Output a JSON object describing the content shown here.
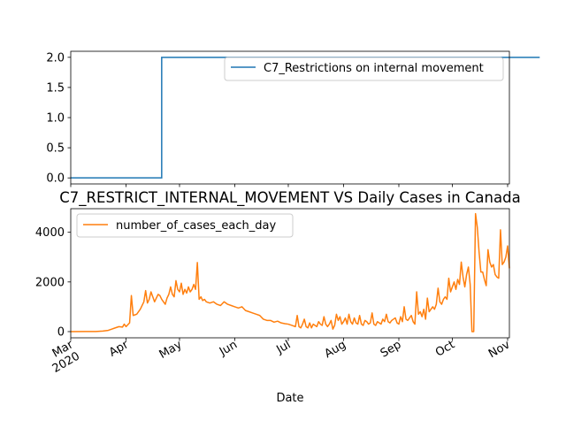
{
  "chart_data": [
    {
      "type": "line",
      "title": "",
      "xlabel": "",
      "ylabel": "",
      "ylim": [
        -0.1,
        2.1
      ],
      "yticks": [
        0.0,
        0.5,
        1.0,
        1.5,
        2.0
      ],
      "ytick_labels": [
        "0.0",
        "0.5",
        "1.0",
        "1.5",
        "2.0"
      ],
      "legend_position": "upper-right",
      "series": [
        {
          "name": "C7_Restrictions on internal movement",
          "color": "#1f77b4",
          "x": [
            0,
            51,
            51,
            263
          ],
          "values": [
            0,
            0,
            2,
            2
          ]
        }
      ]
    },
    {
      "type": "line",
      "title": "C7_RESTRICT_INTERNAL_MOVEMENT VS Daily Cases in Canada",
      "xlabel": "Date",
      "ylabel": "",
      "ylim": [
        -250,
        4950
      ],
      "yticks": [
        0,
        2000,
        4000
      ],
      "ytick_labels": [
        "0",
        "2000",
        "4000"
      ],
      "legend_position": "upper-left",
      "x_ticks": [
        {
          "day": 0,
          "label": "Mar",
          "sublabel": "2020"
        },
        {
          "day": 31,
          "label": "Apr",
          "sublabel": ""
        },
        {
          "day": 61,
          "label": "May",
          "sublabel": ""
        },
        {
          "day": 92,
          "label": "Jun",
          "sublabel": ""
        },
        {
          "day": 122,
          "label": "Jul",
          "sublabel": ""
        },
        {
          "day": 153,
          "label": "Aug",
          "sublabel": ""
        },
        {
          "day": 184,
          "label": "Sep",
          "sublabel": ""
        },
        {
          "day": 214,
          "label": "Oct",
          "sublabel": ""
        },
        {
          "day": 245,
          "label": "Nov",
          "sublabel": ""
        }
      ],
      "series": [
        {
          "name": "number_of_cases_each_day",
          "color": "#ff7f0e",
          "points": [
            [
              0,
              0
            ],
            [
              8,
              2
            ],
            [
              14,
              5
            ],
            [
              18,
              20
            ],
            [
              21,
              50
            ],
            [
              23,
              100
            ],
            [
              25,
              150
            ],
            [
              27,
              200
            ],
            [
              29,
              180
            ],
            [
              30,
              300
            ],
            [
              31,
              200
            ],
            [
              33,
              350
            ],
            [
              34,
              1450
            ],
            [
              35,
              650
            ],
            [
              37,
              700
            ],
            [
              39,
              900
            ],
            [
              41,
              1200
            ],
            [
              42,
              1650
            ],
            [
              43,
              1150
            ],
            [
              44,
              1300
            ],
            [
              45,
              1600
            ],
            [
              46,
              1400
            ],
            [
              47,
              1200
            ],
            [
              48,
              1350
            ],
            [
              49,
              1500
            ],
            [
              50,
              1450
            ],
            [
              51,
              1300
            ],
            [
              52,
              1200
            ],
            [
              53,
              1100
            ],
            [
              54,
              1350
            ],
            [
              55,
              1500
            ],
            [
              56,
              1800
            ],
            [
              57,
              1500
            ],
            [
              58,
              1400
            ],
            [
              59,
              2050
            ],
            [
              60,
              1700
            ],
            [
              61,
              1600
            ],
            [
              62,
              1950
            ],
            [
              63,
              1500
            ],
            [
              64,
              1700
            ],
            [
              65,
              1550
            ],
            [
              66,
              1800
            ],
            [
              67,
              1600
            ],
            [
              68,
              1700
            ],
            [
              69,
              1900
            ],
            [
              70,
              1700
            ],
            [
              71,
              2780
            ],
            [
              72,
              1300
            ],
            [
              73,
              1400
            ],
            [
              74,
              1250
            ],
            [
              75,
              1300
            ],
            [
              76,
              1200
            ],
            [
              78,
              1150
            ],
            [
              80,
              1200
            ],
            [
              82,
              1100
            ],
            [
              84,
              1050
            ],
            [
              86,
              1200
            ],
            [
              88,
              1100
            ],
            [
              90,
              1050
            ],
            [
              92,
              1000
            ],
            [
              94,
              950
            ],
            [
              96,
              1000
            ],
            [
              98,
              850
            ],
            [
              100,
              800
            ],
            [
              102,
              750
            ],
            [
              104,
              700
            ],
            [
              106,
              650
            ],
            [
              108,
              500
            ],
            [
              110,
              450
            ],
            [
              112,
              450
            ],
            [
              114,
              380
            ],
            [
              116,
              420
            ],
            [
              118,
              350
            ],
            [
              120,
              320
            ],
            [
              122,
              300
            ],
            [
              124,
              250
            ],
            [
              126,
              200
            ],
            [
              127,
              650
            ],
            [
              128,
              200
            ],
            [
              129,
              150
            ],
            [
              130,
              300
            ],
            [
              131,
              500
            ],
            [
              132,
              200
            ],
            [
              133,
              150
            ],
            [
              134,
              350
            ],
            [
              135,
              150
            ],
            [
              136,
              300
            ],
            [
              137,
              250
            ],
            [
              138,
              200
            ],
            [
              139,
              400
            ],
            [
              140,
              300
            ],
            [
              141,
              250
            ],
            [
              142,
              600
            ],
            [
              143,
              300
            ],
            [
              144,
              200
            ],
            [
              145,
              300
            ],
            [
              146,
              450
            ],
            [
              147,
              100
            ],
            [
              148,
              250
            ],
            [
              149,
              700
            ],
            [
              150,
              450
            ],
            [
              151,
              600
            ],
            [
              152,
              300
            ],
            [
              153,
              400
            ],
            [
              154,
              550
            ],
            [
              155,
              300
            ],
            [
              156,
              700
            ],
            [
              157,
              400
            ],
            [
              158,
              300
            ],
            [
              159,
              550
            ],
            [
              160,
              350
            ],
            [
              161,
              300
            ],
            [
              162,
              650
            ],
            [
              163,
              300
            ],
            [
              164,
              250
            ],
            [
              165,
              450
            ],
            [
              166,
              400
            ],
            [
              167,
              300
            ],
            [
              168,
              350
            ],
            [
              169,
              750
            ],
            [
              170,
              300
            ],
            [
              171,
              250
            ],
            [
              172,
              400
            ],
            [
              173,
              350
            ],
            [
              174,
              300
            ],
            [
              175,
              500
            ],
            [
              176,
              400
            ],
            [
              177,
              700
            ],
            [
              178,
              400
            ],
            [
              179,
              350
            ],
            [
              180,
              450
            ],
            [
              181,
              500
            ],
            [
              182,
              550
            ],
            [
              183,
              350
            ],
            [
              184,
              300
            ],
            [
              185,
              600
            ],
            [
              186,
              400
            ],
            [
              187,
              1000
            ],
            [
              188,
              500
            ],
            [
              189,
              450
            ],
            [
              190,
              550
            ],
            [
              191,
              650
            ],
            [
              192,
              400
            ],
            [
              193,
              300
            ],
            [
              194,
              1600
            ],
            [
              195,
              700
            ],
            [
              196,
              800
            ],
            [
              197,
              600
            ],
            [
              198,
              900
            ],
            [
              199,
              500
            ],
            [
              200,
              1350
            ],
            [
              201,
              800
            ],
            [
              202,
              900
            ],
            [
              203,
              1000
            ],
            [
              204,
              900
            ],
            [
              205,
              1100
            ],
            [
              206,
              1750
            ],
            [
              207,
              1200
            ],
            [
              208,
              1100
            ],
            [
              209,
              1300
            ],
            [
              210,
              1400
            ],
            [
              211,
              1300
            ],
            [
              212,
              2150
            ],
            [
              213,
              1600
            ],
            [
              214,
              1800
            ],
            [
              215,
              2000
            ],
            [
              216,
              1700
            ],
            [
              217,
              2100
            ],
            [
              218,
              1900
            ],
            [
              219,
              2800
            ],
            [
              220,
              2200
            ],
            [
              221,
              1800
            ],
            [
              222,
              2300
            ],
            [
              223,
              2600
            ],
            [
              224,
              1900
            ],
            [
              225,
              0
            ],
            [
              226,
              0
            ],
            [
              227,
              4750
            ],
            [
              228,
              4200
            ],
            [
              229,
              3200
            ],
            [
              230,
              2400
            ],
            [
              231,
              2400
            ],
            [
              232,
              2100
            ],
            [
              233,
              1850
            ],
            [
              234,
              3300
            ],
            [
              235,
              2800
            ],
            [
              236,
              2600
            ],
            [
              237,
              2700
            ],
            [
              238,
              2300
            ],
            [
              239,
              2200
            ],
            [
              240,
              2150
            ],
            [
              241,
              4100
            ],
            [
              242,
              2700
            ],
            [
              243,
              2800
            ],
            [
              244,
              3000
            ],
            [
              245,
              3450
            ],
            [
              246,
              2550
            ]
          ]
        }
      ]
    }
  ]
}
